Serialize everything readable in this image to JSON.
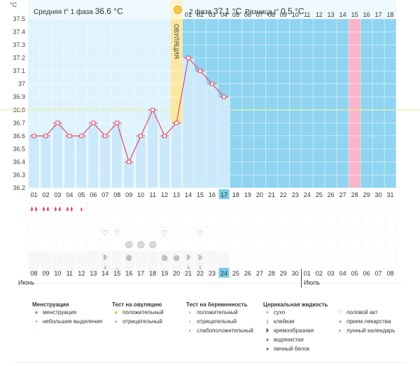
{
  "header": {
    "phase1_label": "Средняя t° 1 фаза",
    "phase1_value": "36.6 °C",
    "phase2_label": "2 фаза",
    "phase2_value": "37.1 °C",
    "diff_label": "Разница t°",
    "diff_value": "0.5 °C",
    "ovulation_label": "ОВУЛЯЦИЯ"
  },
  "y_unit": "°C",
  "chart_data": {
    "type": "line",
    "ylim": [
      36.2,
      37.5
    ],
    "y_ticks": [
      "37.5",
      "37.4",
      "37.3",
      "37.2",
      "37.1",
      "37",
      "36.9",
      "36.8",
      "36.7",
      "36.6",
      "36.5",
      "36.4",
      "36.3",
      "36.2"
    ],
    "cycle_days": [
      "01",
      "02",
      "03",
      "04",
      "05",
      "06",
      "07",
      "08",
      "09",
      "10",
      "11",
      "12",
      "13",
      "14",
      "15",
      "16",
      "17",
      "18",
      "19",
      "20",
      "21",
      "22",
      "23",
      "24",
      "25",
      "26",
      "27",
      "28",
      "29",
      "30",
      "31"
    ],
    "temperatures": [
      36.6,
      36.6,
      36.7,
      36.6,
      36.6,
      36.7,
      36.6,
      36.7,
      36.4,
      36.6,
      36.8,
      36.6,
      36.7,
      37.2,
      37.1,
      37.0,
      36.9
    ],
    "coverline": 36.8,
    "ovulation_day": 13,
    "highlight_day": 28,
    "current_day": 17,
    "top_day_labels": [
      "01",
      "02",
      "03",
      "04",
      "05",
      "06",
      "07",
      "08",
      "09",
      "10",
      "11",
      "12",
      "13",
      "14",
      "15",
      "16",
      "17",
      "18"
    ],
    "top_highlight_label": "15"
  },
  "calendar": {
    "dates": [
      "08",
      "09",
      "10",
      "11",
      "12",
      "13",
      "14",
      "15",
      "16",
      "17",
      "18",
      "19",
      "20",
      "21",
      "22",
      "23",
      "24",
      "25",
      "26",
      "27",
      "28",
      "29",
      "30",
      "01",
      "02",
      "03",
      "04",
      "05",
      "06",
      "07",
      "08"
    ],
    "red_dates": [
      1,
      2,
      8,
      9,
      13,
      22,
      23,
      29,
      30
    ],
    "month_june": "Июнь",
    "month_july": "Июль"
  },
  "legend": {
    "menstruation_title": "Менструация",
    "menstruation_items": [
      "менструация",
      "небольшие выделения"
    ],
    "ovulation_test_title": "Тест на овуляцию",
    "ovulation_test_items": [
      "положительный",
      "отрицательный"
    ],
    "pregnancy_test_title": "Тест на беременность",
    "pregnancy_test_items": [
      "положительный",
      "отрицательный",
      "слабоположительный"
    ],
    "cervical_title": "Церикальная жидкость",
    "cervical_items": [
      "сухо",
      "клейкая",
      "кремообразная",
      "водянистая",
      "яичный белок"
    ],
    "other_items": [
      "половой акт",
      "прием лекарства",
      "лунный календарь"
    ]
  },
  "colors": {
    "phase1_bg": "#dff3fd",
    "phase2_bg": "#8fd4f0",
    "ovulation": "#fbe8a0",
    "highlight": "#f7b5c9",
    "line": "#e04a6a",
    "bar": "#cbe9fb",
    "coverline": "#e8efa0"
  }
}
